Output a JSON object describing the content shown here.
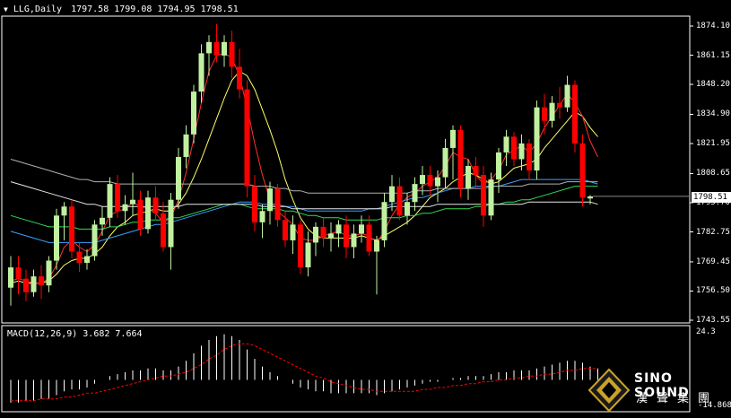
{
  "main_header": {
    "symbol": "LLG,Daily",
    "ohlc": "1797.58 1799.08 1794.95 1798.51"
  },
  "macd_header": "MACD(12,26,9) 3.682 7.664",
  "price_ticks": [
    "1874.10",
    "1861.15",
    "1848.20",
    "1834.90",
    "1821.95",
    "1808.65",
    "1795.70",
    "1782.75",
    "1769.45",
    "1756.50",
    "1743.55"
  ],
  "current_price": "1798.51",
  "macd_ticks": [
    "24.3",
    "-14.868"
  ],
  "brand": {
    "english": "SINO SOUND",
    "chinese": "漢聲集團"
  },
  "colors": {
    "bull": "#c0f0a0",
    "bear": "#ff0000",
    "ma_yellow": "#ffff66",
    "ma_red": "#ff3030",
    "ma_blue": "#3aa0ff",
    "ma_green": "#33dd55",
    "ma_white": "#e8e8e8",
    "ma_gray": "#b0b0b0",
    "signal": "#ff0000",
    "histogram": "#ffffff"
  },
  "chart_data": {
    "type": "candlestick",
    "ylim": [
      1743.55,
      1874.1
    ],
    "candles": [
      {
        "o": 1758,
        "h": 1772,
        "l": 1750,
        "c": 1767
      },
      {
        "o": 1767,
        "h": 1772,
        "l": 1755,
        "c": 1762
      },
      {
        "o": 1762,
        "h": 1766,
        "l": 1752,
        "c": 1756
      },
      {
        "o": 1756,
        "h": 1766,
        "l": 1754,
        "c": 1763
      },
      {
        "o": 1763,
        "h": 1768,
        "l": 1753,
        "c": 1759
      },
      {
        "o": 1759,
        "h": 1772,
        "l": 1756,
        "c": 1770
      },
      {
        "o": 1770,
        "h": 1793,
        "l": 1766,
        "c": 1790
      },
      {
        "o": 1790,
        "h": 1796,
        "l": 1779,
        "c": 1794
      },
      {
        "o": 1794,
        "h": 1797,
        "l": 1771,
        "c": 1774
      },
      {
        "o": 1774,
        "h": 1778,
        "l": 1765,
        "c": 1769
      },
      {
        "o": 1769,
        "h": 1775,
        "l": 1766,
        "c": 1772
      },
      {
        "o": 1772,
        "h": 1788,
        "l": 1770,
        "c": 1786
      },
      {
        "o": 1786,
        "h": 1794,
        "l": 1781,
        "c": 1789
      },
      {
        "o": 1789,
        "h": 1807,
        "l": 1785,
        "c": 1804
      },
      {
        "o": 1804,
        "h": 1808,
        "l": 1789,
        "c": 1792
      },
      {
        "o": 1792,
        "h": 1799,
        "l": 1786,
        "c": 1795
      },
      {
        "o": 1795,
        "h": 1809,
        "l": 1790,
        "c": 1797
      },
      {
        "o": 1797,
        "h": 1801,
        "l": 1781,
        "c": 1784
      },
      {
        "o": 1784,
        "h": 1801,
        "l": 1782,
        "c": 1798
      },
      {
        "o": 1798,
        "h": 1803,
        "l": 1788,
        "c": 1791
      },
      {
        "o": 1791,
        "h": 1796,
        "l": 1774,
        "c": 1776
      },
      {
        "o": 1776,
        "h": 1800,
        "l": 1766,
        "c": 1797
      },
      {
        "o": 1797,
        "h": 1820,
        "l": 1793,
        "c": 1816
      },
      {
        "o": 1816,
        "h": 1830,
        "l": 1811,
        "c": 1826
      },
      {
        "o": 1826,
        "h": 1848,
        "l": 1822,
        "c": 1845
      },
      {
        "o": 1845,
        "h": 1866,
        "l": 1840,
        "c": 1862
      },
      {
        "o": 1862,
        "h": 1870,
        "l": 1852,
        "c": 1867
      },
      {
        "o": 1867,
        "h": 1875,
        "l": 1858,
        "c": 1861
      },
      {
        "o": 1861,
        "h": 1870,
        "l": 1856,
        "c": 1867
      },
      {
        "o": 1867,
        "h": 1872,
        "l": 1851,
        "c": 1856
      },
      {
        "o": 1856,
        "h": 1864,
        "l": 1842,
        "c": 1846
      },
      {
        "o": 1846,
        "h": 1850,
        "l": 1798,
        "c": 1803
      },
      {
        "o": 1803,
        "h": 1808,
        "l": 1783,
        "c": 1787
      },
      {
        "o": 1787,
        "h": 1795,
        "l": 1780,
        "c": 1792
      },
      {
        "o": 1792,
        "h": 1805,
        "l": 1786,
        "c": 1802
      },
      {
        "o": 1802,
        "h": 1804,
        "l": 1785,
        "c": 1788
      },
      {
        "o": 1788,
        "h": 1792,
        "l": 1776,
        "c": 1779
      },
      {
        "o": 1779,
        "h": 1790,
        "l": 1773,
        "c": 1786
      },
      {
        "o": 1786,
        "h": 1788,
        "l": 1764,
        "c": 1767
      },
      {
        "o": 1767,
        "h": 1783,
        "l": 1763,
        "c": 1778
      },
      {
        "o": 1778,
        "h": 1787,
        "l": 1772,
        "c": 1785
      },
      {
        "o": 1785,
        "h": 1789,
        "l": 1776,
        "c": 1780
      },
      {
        "o": 1780,
        "h": 1787,
        "l": 1774,
        "c": 1782
      },
      {
        "o": 1782,
        "h": 1788,
        "l": 1776,
        "c": 1786
      },
      {
        "o": 1786,
        "h": 1790,
        "l": 1771,
        "c": 1776
      },
      {
        "o": 1776,
        "h": 1786,
        "l": 1771,
        "c": 1782
      },
      {
        "o": 1782,
        "h": 1790,
        "l": 1778,
        "c": 1786
      },
      {
        "o": 1786,
        "h": 1790,
        "l": 1772,
        "c": 1774
      },
      {
        "o": 1774,
        "h": 1781,
        "l": 1755,
        "c": 1779
      },
      {
        "o": 1779,
        "h": 1800,
        "l": 1776,
        "c": 1796
      },
      {
        "o": 1796,
        "h": 1808,
        "l": 1792,
        "c": 1803
      },
      {
        "o": 1803,
        "h": 1807,
        "l": 1788,
        "c": 1790
      },
      {
        "o": 1790,
        "h": 1800,
        "l": 1786,
        "c": 1796
      },
      {
        "o": 1796,
        "h": 1807,
        "l": 1792,
        "c": 1804
      },
      {
        "o": 1804,
        "h": 1812,
        "l": 1799,
        "c": 1808
      },
      {
        "o": 1808,
        "h": 1812,
        "l": 1799,
        "c": 1803
      },
      {
        "o": 1803,
        "h": 1810,
        "l": 1796,
        "c": 1807
      },
      {
        "o": 1807,
        "h": 1824,
        "l": 1802,
        "c": 1820
      },
      {
        "o": 1820,
        "h": 1830,
        "l": 1806,
        "c": 1828
      },
      {
        "o": 1828,
        "h": 1830,
        "l": 1798,
        "c": 1802
      },
      {
        "o": 1802,
        "h": 1815,
        "l": 1797,
        "c": 1812
      },
      {
        "o": 1812,
        "h": 1816,
        "l": 1802,
        "c": 1808
      },
      {
        "o": 1808,
        "h": 1812,
        "l": 1785,
        "c": 1790
      },
      {
        "o": 1790,
        "h": 1809,
        "l": 1788,
        "c": 1806
      },
      {
        "o": 1806,
        "h": 1820,
        "l": 1800,
        "c": 1818
      },
      {
        "o": 1818,
        "h": 1828,
        "l": 1812,
        "c": 1825
      },
      {
        "o": 1825,
        "h": 1827,
        "l": 1812,
        "c": 1815
      },
      {
        "o": 1815,
        "h": 1826,
        "l": 1810,
        "c": 1822
      },
      {
        "o": 1822,
        "h": 1824,
        "l": 1806,
        "c": 1810
      },
      {
        "o": 1810,
        "h": 1841,
        "l": 1806,
        "c": 1838
      },
      {
        "o": 1838,
        "h": 1844,
        "l": 1826,
        "c": 1832
      },
      {
        "o": 1832,
        "h": 1843,
        "l": 1829,
        "c": 1840
      },
      {
        "o": 1840,
        "h": 1847,
        "l": 1833,
        "c": 1838
      },
      {
        "o": 1838,
        "h": 1852,
        "l": 1836,
        "c": 1848
      },
      {
        "o": 1848,
        "h": 1850,
        "l": 1818,
        "c": 1822
      },
      {
        "o": 1822,
        "h": 1826,
        "l": 1794,
        "c": 1798
      },
      {
        "o": 1797.58,
        "h": 1799.08,
        "l": 1794.95,
        "c": 1798.51
      }
    ],
    "moving_averages": [
      {
        "color_key": "ma_yellow",
        "values": [
          1760,
          1761,
          1760,
          1760,
          1760,
          1761,
          1764,
          1768,
          1770,
          1771,
          1771,
          1773,
          1776,
          1781,
          1785,
          1787,
          1790,
          1791,
          1792,
          1793,
          1792,
          1792,
          1795,
          1800,
          1807,
          1815,
          1824,
          1833,
          1842,
          1850,
          1854,
          1852,
          1846,
          1837,
          1828,
          1818,
          1806,
          1797,
          1789,
          1784,
          1781,
          1780,
          1780,
          1780,
          1780,
          1780,
          1781,
          1780,
          1779,
          1781,
          1783,
          1785,
          1787,
          1790,
          1794,
          1798,
          1800,
          1802,
          1805,
          1807,
          1809,
          1808,
          1806,
          1804,
          1805,
          1808,
          1811,
          1812,
          1813,
          1815,
          1820,
          1824,
          1828,
          1832,
          1836,
          1834,
          1829,
          1825
        ]
      },
      {
        "color_key": "ma_red",
        "values": [
          1761,
          1762,
          1761,
          1760,
          1760,
          1762,
          1768,
          1776,
          1779,
          1776,
          1774,
          1777,
          1783,
          1790,
          1792,
          1793,
          1796,
          1794,
          1793,
          1791,
          1787,
          1789,
          1797,
          1809,
          1824,
          1840,
          1854,
          1861,
          1862,
          1860,
          1852,
          1838,
          1822,
          1808,
          1797,
          1792,
          1789,
          1786,
          1780,
          1779,
          1779,
          1781,
          1782,
          1783,
          1781,
          1781,
          1782,
          1781,
          1778,
          1783,
          1790,
          1795,
          1798,
          1800,
          1803,
          1805,
          1807,
          1812,
          1818,
          1816,
          1815,
          1808,
          1804,
          1806,
          1810,
          1817,
          1819,
          1821,
          1818,
          1822,
          1829,
          1834,
          1839,
          1844,
          1840,
          1834,
          1823,
          1816
        ]
      },
      {
        "color_key": "ma_blue",
        "values": [
          1783,
          1782,
          1781,
          1780,
          1779,
          1778,
          1778,
          1778,
          1778,
          1778,
          1778,
          1778,
          1779,
          1780,
          1781,
          1782,
          1783,
          1784,
          1785,
          1786,
          1786,
          1787,
          1788,
          1789,
          1790,
          1791,
          1792,
          1793,
          1794,
          1795,
          1796,
          1796,
          1796,
          1795,
          1795,
          1795,
          1794,
          1794,
          1793,
          1792,
          1792,
          1792,
          1792,
          1792,
          1792,
          1792,
          1792,
          1793,
          1793,
          1794,
          1795,
          1796,
          1797,
          1798,
          1798,
          1799,
          1800,
          1801,
          1802,
          1802,
          1802,
          1803,
          1803,
          1803,
          1803,
          1804,
          1805,
          1806,
          1806,
          1806,
          1806,
          1806,
          1806,
          1806,
          1806,
          1806,
          1805,
          1804
        ]
      },
      {
        "color_key": "ma_green",
        "values": [
          1790,
          1789,
          1788,
          1787,
          1786,
          1785,
          1785,
          1785,
          1785,
          1784,
          1784,
          1784,
          1784,
          1785,
          1785,
          1786,
          1787,
          1787,
          1788,
          1788,
          1788,
          1789,
          1789,
          1790,
          1791,
          1792,
          1793,
          1794,
          1795,
          1795,
          1795,
          1794,
          1793,
          1793,
          1793,
          1793,
          1792,
          1792,
          1791,
          1790,
          1790,
          1789,
          1789,
          1789,
          1788,
          1788,
          1788,
          1788,
          1788,
          1789,
          1789,
          1789,
          1790,
          1790,
          1791,
          1791,
          1792,
          1793,
          1793,
          1793,
          1793,
          1794,
          1794,
          1795,
          1795,
          1796,
          1796,
          1797,
          1797,
          1798,
          1799,
          1800,
          1801,
          1802,
          1803,
          1803,
          1803,
          1803
        ]
      },
      {
        "color_key": "ma_white",
        "values": [
          1805,
          1804,
          1803,
          1802,
          1801,
          1800,
          1799,
          1798,
          1797,
          1796,
          1795,
          1795,
          1794,
          1794,
          1794,
          1794,
          1794,
          1794,
          1794,
          1794,
          1794,
          1794,
          1794,
          1795,
          1795,
          1795,
          1795,
          1795,
          1795,
          1795,
          1795,
          1795,
          1795,
          1794,
          1794,
          1794,
          1794,
          1793,
          1793,
          1793,
          1793,
          1793,
          1793,
          1793,
          1793,
          1793,
          1793,
          1793,
          1793,
          1793,
          1794,
          1794,
          1794,
          1794,
          1794,
          1794,
          1795,
          1795,
          1795,
          1795,
          1795,
          1795,
          1795,
          1795,
          1795,
          1795,
          1795,
          1795,
          1796,
          1796,
          1796,
          1796,
          1796,
          1796,
          1796,
          1796,
          1796,
          1795
        ]
      },
      {
        "color_key": "ma_gray",
        "values": [
          1815,
          1814,
          1813,
          1812,
          1811,
          1810,
          1809,
          1808,
          1807,
          1806,
          1806,
          1805,
          1805,
          1805,
          1804,
          1804,
          1804,
          1804,
          1804,
          1804,
          1804,
          1804,
          1804,
          1804,
          1804,
          1804,
          1804,
          1804,
          1804,
          1804,
          1804,
          1804,
          1803,
          1803,
          1803,
          1802,
          1802,
          1801,
          1801,
          1800,
          1800,
          1800,
          1800,
          1800,
          1800,
          1800,
          1800,
          1800,
          1800,
          1800,
          1800,
          1800,
          1800,
          1801,
          1801,
          1801,
          1802,
          1802,
          1802,
          1802,
          1802,
          1802,
          1802,
          1803,
          1803,
          1803,
          1803,
          1803,
          1804,
          1804,
          1804,
          1804,
          1804,
          1805,
          1805,
          1805,
          1805,
          1805
        ]
      }
    ],
    "macd": {
      "ylim": [
        -14.868,
        24.3
      ],
      "histogram": [
        -12,
        -12,
        -11,
        -11,
        -10,
        -10,
        -8,
        -6,
        -5,
        -5,
        -4,
        -2,
        0,
        2,
        3,
        4,
        5,
        5,
        6,
        6,
        5,
        5,
        7,
        10,
        14,
        18,
        21,
        23,
        24,
        23,
        21,
        16,
        11,
        7,
        4,
        2,
        0,
        -2,
        -4,
        -5,
        -6,
        -6,
        -7,
        -7,
        -7,
        -7,
        -7,
        -7,
        -8,
        -7,
        -6,
        -5,
        -4,
        -3,
        -2,
        -1,
        -1,
        0,
        1,
        1,
        2,
        2,
        2,
        3,
        4,
        4,
        5,
        5,
        5,
        6,
        7,
        8,
        9,
        10,
        10,
        9,
        7,
        6
      ],
      "signal": [
        -11,
        -11,
        -11,
        -11,
        -10,
        -10,
        -10,
        -9,
        -9,
        -8,
        -7,
        -7,
        -6,
        -5,
        -4,
        -3,
        -2,
        -1,
        0,
        1,
        2,
        2,
        3,
        4,
        6,
        8,
        11,
        13,
        16,
        18,
        19,
        19,
        18,
        16,
        14,
        12,
        10,
        8,
        6,
        4,
        2,
        1,
        -1,
        -2,
        -3,
        -4,
        -5,
        -5,
        -6,
        -6,
        -6,
        -6,
        -6,
        -6,
        -5,
        -5,
        -4,
        -4,
        -3,
        -3,
        -2,
        -2,
        -1,
        -1,
        0,
        0,
        1,
        1,
        2,
        2,
        3,
        3,
        4,
        5,
        5,
        6,
        6,
        6
      ]
    }
  }
}
